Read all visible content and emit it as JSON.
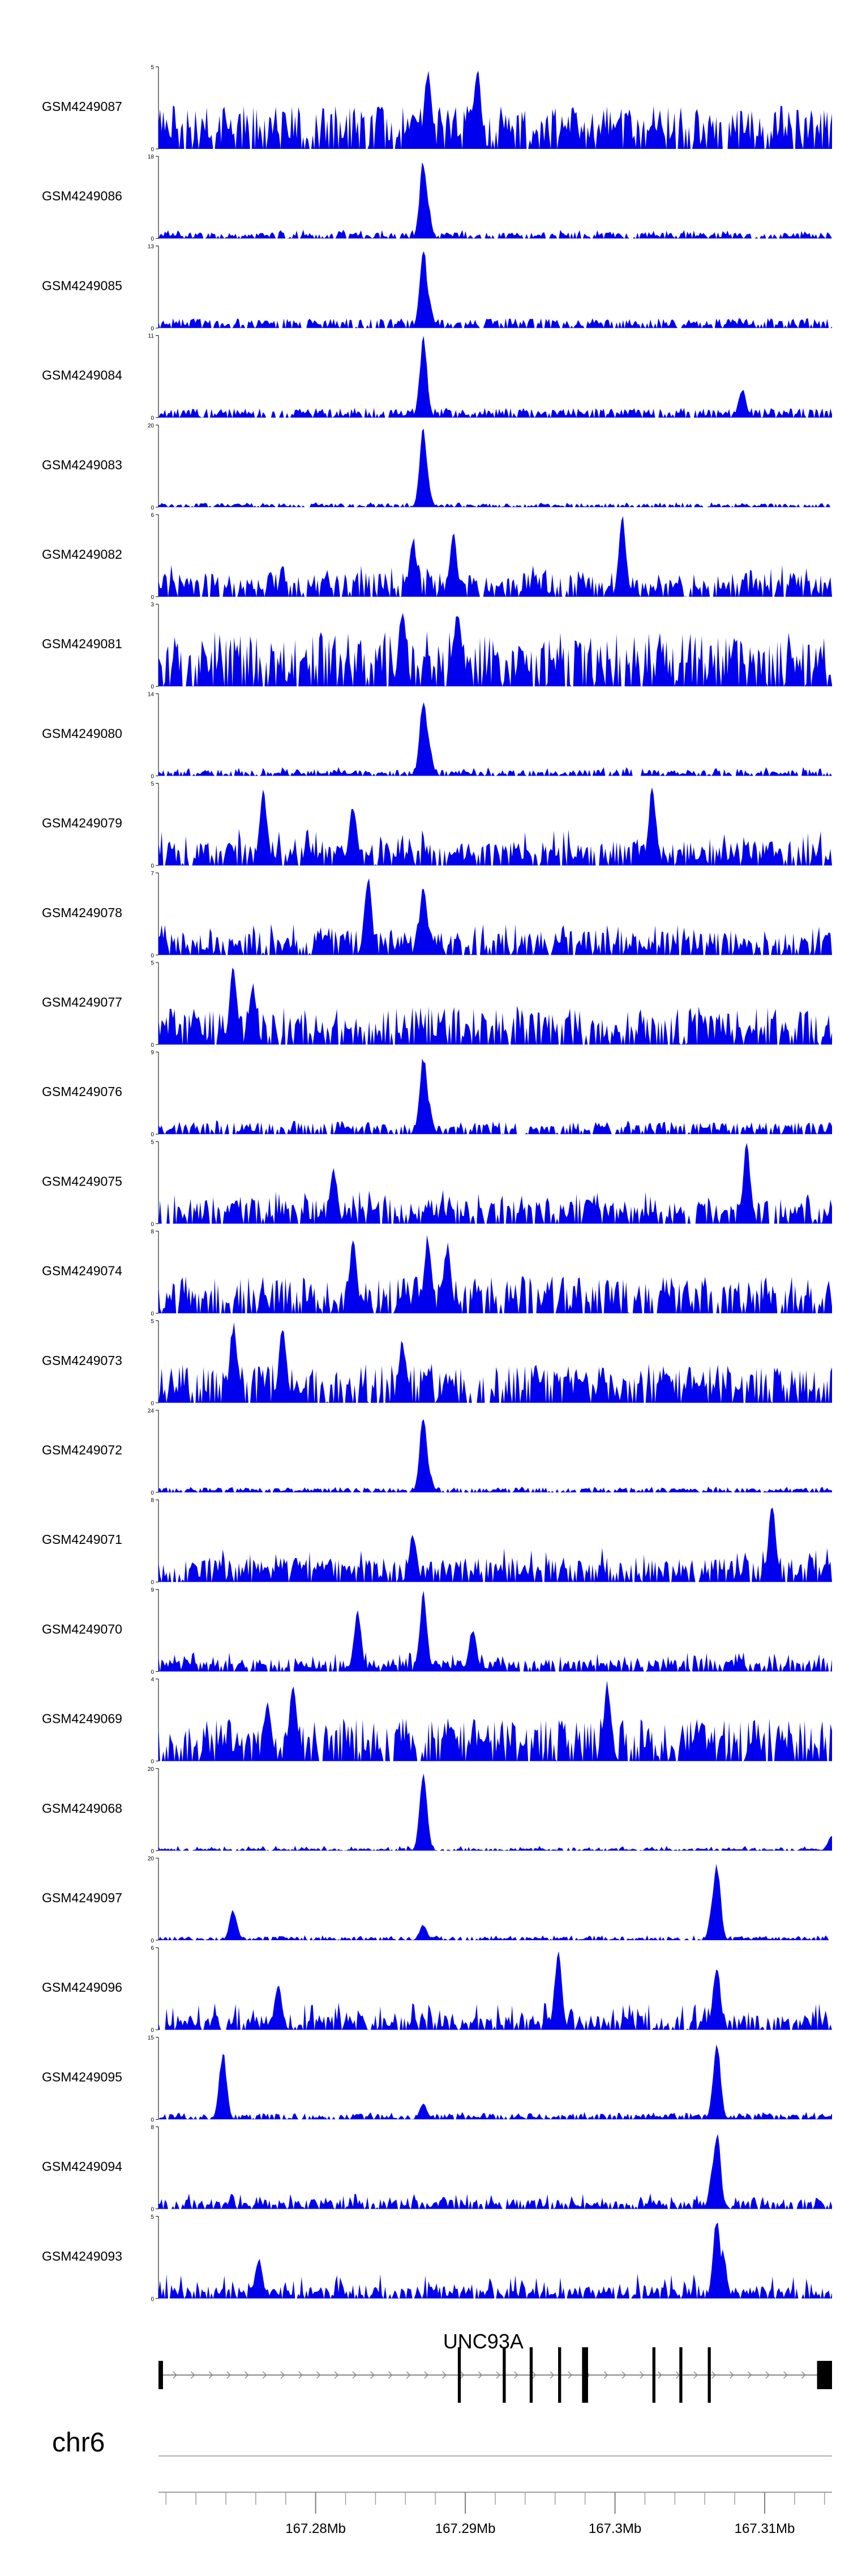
{
  "chart_data": {
    "type": "area",
    "chromosome": "chr6",
    "x_axis": {
      "range": [
        167.2695,
        167.3145
      ],
      "unit": "Mb",
      "labeled_ticks": [
        "167.28Mb",
        "167.29Mb",
        "167.3Mb",
        "167.31Mb"
      ],
      "labeled_tick_values": [
        167.28,
        167.29,
        167.3,
        167.31
      ],
      "minor_tick_step": 0.002
    },
    "gene": {
      "name": "UNC93A",
      "start": 167.2695,
      "end": 167.3145,
      "strand": "+",
      "exons": [
        {
          "start": 167.2695,
          "end": 167.2698
        },
        {
          "start": 167.2895,
          "end": 167.2897
        },
        {
          "start": 167.2925,
          "end": 167.2927
        },
        {
          "start": 167.2943,
          "end": 167.2945
        },
        {
          "start": 167.2962,
          "end": 167.2964
        },
        {
          "start": 167.2978,
          "end": 167.2982
        },
        {
          "start": 167.3025,
          "end": 167.3027
        },
        {
          "start": 167.3043,
          "end": 167.3045
        },
        {
          "start": 167.3062,
          "end": 167.3064
        },
        {
          "start": 167.3135,
          "end": 167.3145
        }
      ]
    },
    "series": [
      {
        "name": "GSM4249087",
        "ymax": 5,
        "peaks": [
          [
            167.2865,
            2.2
          ],
          [
            167.2875,
            5
          ],
          [
            167.2908,
            5
          ]
        ],
        "baseline": 0.35,
        "noise": 0.9,
        "seed": 87
      },
      {
        "name": "GSM4249086",
        "ymax": 18,
        "peaks": [
          [
            167.2872,
            18
          ],
          [
            167.2874,
            10
          ]
        ],
        "baseline": 0.05,
        "noise": 0.18,
        "seed": 86
      },
      {
        "name": "GSM4249085",
        "ymax": 13,
        "peaks": [
          [
            167.2872,
            13
          ],
          [
            167.2875,
            6
          ]
        ],
        "baseline": 0.08,
        "noise": 0.2,
        "seed": 85
      },
      {
        "name": "GSM4249084",
        "ymax": 11,
        "peaks": [
          [
            167.2872,
            11
          ],
          [
            167.3085,
            4
          ]
        ],
        "baseline": 0.08,
        "noise": 0.2,
        "seed": 84
      },
      {
        "name": "GSM4249083",
        "ymax": 20,
        "peaks": [
          [
            167.2872,
            20
          ],
          [
            167.2874,
            8
          ]
        ],
        "baseline": 0.03,
        "noise": 0.1,
        "seed": 83
      },
      {
        "name": "GSM4249082",
        "ymax": 6,
        "peaks": [
          [
            167.2892,
            4.8
          ],
          [
            167.3005,
            6
          ],
          [
            167.2865,
            4.5
          ]
        ],
        "baseline": 0.2,
        "noise": 0.65,
        "seed": 82
      },
      {
        "name": "GSM4249081",
        "ymax": 3,
        "peaks": [
          [
            167.2895,
            3
          ],
          [
            167.2858,
            3
          ]
        ],
        "baseline": 0.45,
        "noise": 1,
        "seed": 81
      },
      {
        "name": "GSM4249080",
        "ymax": 14,
        "peaks": [
          [
            167.2872,
            14
          ],
          [
            167.2875,
            7
          ]
        ],
        "baseline": 0.05,
        "noise": 0.18,
        "seed": 80
      },
      {
        "name": "GSM4249079",
        "ymax": 5,
        "peaks": [
          [
            167.2765,
            5
          ],
          [
            167.2825,
            4
          ],
          [
            167.3025,
            5
          ]
        ],
        "baseline": 0.2,
        "noise": 0.75,
        "seed": 79
      },
      {
        "name": "GSM4249078",
        "ymax": 7,
        "peaks": [
          [
            167.2835,
            7
          ],
          [
            167.2872,
            6.5
          ]
        ],
        "baseline": 0.2,
        "noise": 0.65,
        "seed": 78
      },
      {
        "name": "GSM4249077",
        "ymax": 5,
        "peaks": [
          [
            167.2745,
            5
          ],
          [
            167.2758,
            3.8
          ]
        ],
        "baseline": 0.3,
        "noise": 0.8,
        "seed": 77
      },
      {
        "name": "GSM4249076",
        "ymax": 9,
        "peaks": [
          [
            167.2872,
            9
          ],
          [
            167.2875,
            4
          ]
        ],
        "baseline": 0.1,
        "noise": 0.28,
        "seed": 76
      },
      {
        "name": "GSM4249075",
        "ymax": 5,
        "peaks": [
          [
            167.3088,
            5
          ],
          [
            167.2812,
            3.6
          ]
        ],
        "baseline": 0.2,
        "noise": 0.7,
        "seed": 75
      },
      {
        "name": "GSM4249074",
        "ymax": 8,
        "peaks": [
          [
            167.2875,
            8
          ],
          [
            167.2825,
            7.5
          ],
          [
            167.2888,
            7
          ]
        ],
        "baseline": 0.3,
        "noise": 0.75,
        "seed": 74
      },
      {
        "name": "GSM4249073",
        "ymax": 5,
        "peaks": [
          [
            167.2745,
            5
          ],
          [
            167.2778,
            5
          ],
          [
            167.2858,
            4
          ]
        ],
        "baseline": 0.3,
        "noise": 0.8,
        "seed": 73
      },
      {
        "name": "GSM4249072",
        "ymax": 24,
        "peaks": [
          [
            167.2872,
            24
          ],
          [
            167.2875,
            8
          ]
        ],
        "baseline": 0.04,
        "noise": 0.12,
        "seed": 72
      },
      {
        "name": "GSM4249071",
        "ymax": 8,
        "peaks": [
          [
            167.3105,
            8
          ],
          [
            167.2865,
            5
          ]
        ],
        "baseline": 0.2,
        "noise": 0.7,
        "seed": 71
      },
      {
        "name": "GSM4249070",
        "ymax": 9,
        "peaks": [
          [
            167.2872,
            9
          ],
          [
            167.2828,
            7
          ],
          [
            167.2905,
            5
          ]
        ],
        "baseline": 0.1,
        "noise": 0.4,
        "seed": 70
      },
      {
        "name": "GSM4249069",
        "ymax": 4,
        "peaks": [
          [
            167.2785,
            4
          ],
          [
            167.2768,
            3
          ],
          [
            167.2995,
            4
          ]
        ],
        "baseline": 0.35,
        "noise": 0.85,
        "seed": 69
      },
      {
        "name": "GSM4249068",
        "ymax": 20,
        "peaks": [
          [
            167.2872,
            20
          ],
          [
            167.3145,
            4
          ]
        ],
        "baseline": 0.02,
        "noise": 0.1,
        "seed": 68
      },
      {
        "name": "GSM4249097",
        "ymax": 20,
        "peaks": [
          [
            167.3068,
            20
          ],
          [
            167.3066,
            12
          ],
          [
            167.2745,
            8
          ],
          [
            167.2872,
            4
          ]
        ],
        "baseline": 0.03,
        "noise": 0.1,
        "seed": 97
      },
      {
        "name": "GSM4249096",
        "ymax": 6,
        "peaks": [
          [
            167.2962,
            6
          ],
          [
            167.3068,
            5
          ],
          [
            167.2775,
            3.5
          ]
        ],
        "baseline": 0.12,
        "noise": 0.55,
        "seed": 96
      },
      {
        "name": "GSM4249095",
        "ymax": 15,
        "peaks": [
          [
            167.3068,
            15
          ],
          [
            167.2738,
            13
          ],
          [
            167.2872,
            3
          ]
        ],
        "baseline": 0.05,
        "noise": 0.15,
        "seed": 95
      },
      {
        "name": "GSM4249094",
        "ymax": 8,
        "peaks": [
          [
            167.3068,
            8
          ],
          [
            167.3066,
            5
          ]
        ],
        "baseline": 0.08,
        "noise": 0.32,
        "seed": 94
      },
      {
        "name": "GSM4249093",
        "ymax": 5,
        "peaks": [
          [
            167.3068,
            5
          ],
          [
            167.3072,
            3
          ],
          [
            167.2762,
            2.5
          ]
        ],
        "baseline": 0.1,
        "noise": 0.5,
        "seed": 93
      }
    ],
    "colors": {
      "fill": "#0000ee",
      "axis": "#000000",
      "gene": "#000000",
      "intron": "#888888"
    },
    "grid": false,
    "legend": "none"
  }
}
